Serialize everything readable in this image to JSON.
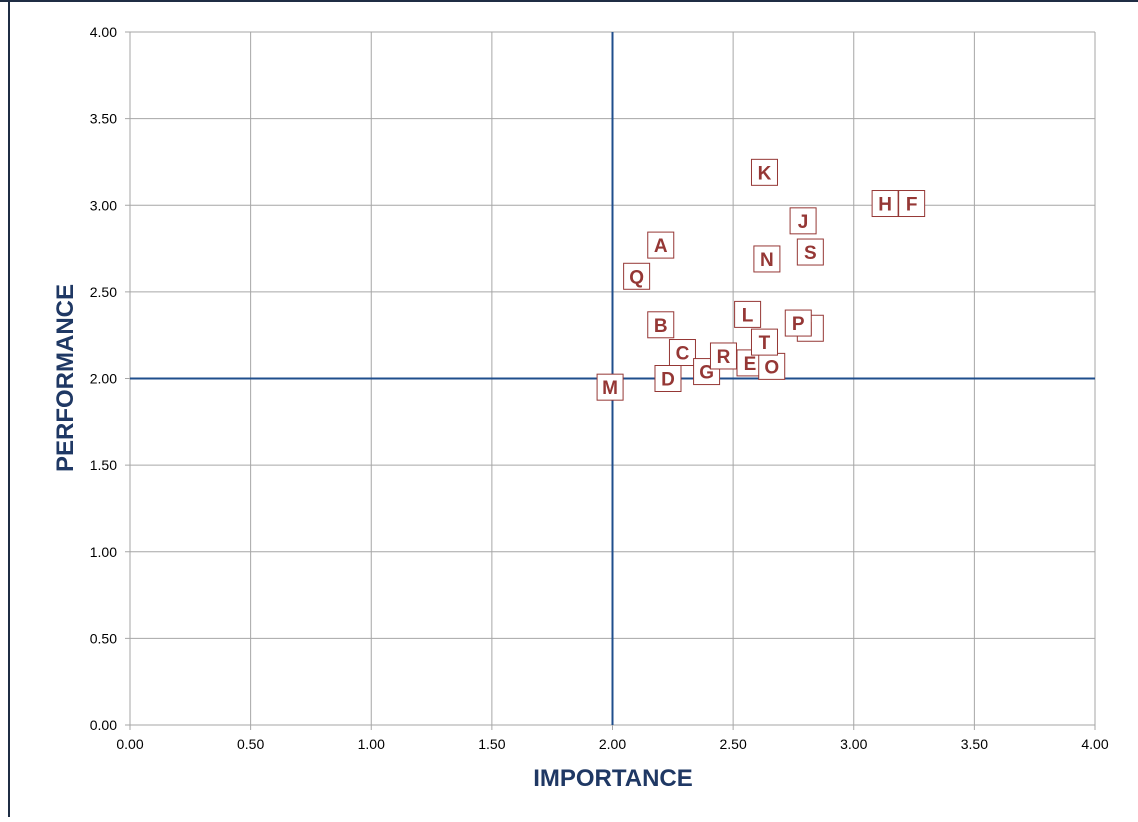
{
  "chart_data": {
    "type": "scatter",
    "xlabel": "IMPORTANCE",
    "ylabel": "PERFORMANCE",
    "xlim": [
      0,
      4
    ],
    "ylim": [
      0,
      4
    ],
    "x_ticks": [
      "0.00",
      "0.50",
      "1.00",
      "1.50",
      "2.00",
      "2.50",
      "3.00",
      "3.50",
      "4.00"
    ],
    "y_ticks": [
      "0.00",
      "0.50",
      "1.00",
      "1.50",
      "2.00",
      "2.50",
      "3.00",
      "3.50",
      "4.00"
    ],
    "grid": true,
    "reference_lines": {
      "x": 2.0,
      "y": 2.0
    },
    "points": [
      {
        "label": "A",
        "x": 2.2,
        "y": 2.77
      },
      {
        "label": "B",
        "x": 2.2,
        "y": 2.31
      },
      {
        "label": "C",
        "x": 2.29,
        "y": 2.15
      },
      {
        "label": "D",
        "x": 2.23,
        "y": 2.0
      },
      {
        "label": "E",
        "x": 2.57,
        "y": 2.09
      },
      {
        "label": "F",
        "x": 3.24,
        "y": 3.01
      },
      {
        "label": "G",
        "x": 2.39,
        "y": 2.04
      },
      {
        "label": "H",
        "x": 3.13,
        "y": 3.01
      },
      {
        "label": "I",
        "x": 2.82,
        "y": 2.29
      },
      {
        "label": "J",
        "x": 2.79,
        "y": 2.91
      },
      {
        "label": "K",
        "x": 2.63,
        "y": 3.19
      },
      {
        "label": "L",
        "x": 2.56,
        "y": 2.37
      },
      {
        "label": "M",
        "x": 1.99,
        "y": 1.95
      },
      {
        "label": "N",
        "x": 2.64,
        "y": 2.69
      },
      {
        "label": "O",
        "x": 2.66,
        "y": 2.07
      },
      {
        "label": "P",
        "x": 2.77,
        "y": 2.32
      },
      {
        "label": "Q",
        "x": 2.1,
        "y": 2.59
      },
      {
        "label": "R",
        "x": 2.46,
        "y": 2.13
      },
      {
        "label": "S",
        "x": 2.82,
        "y": 2.73
      },
      {
        "label": "T",
        "x": 2.63,
        "y": 2.21
      }
    ]
  },
  "colors": {
    "frame": "#1f2d44",
    "grid": "#a6a6a6",
    "reference_line": "#1f4e8c",
    "axis_title": "#1f3864",
    "point_label": "#953735"
  }
}
